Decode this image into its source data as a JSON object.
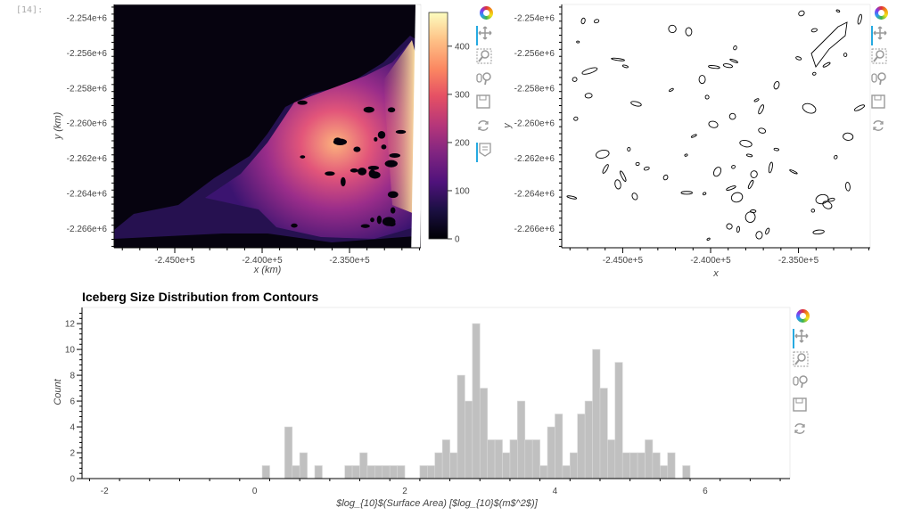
{
  "cell_prompt": "[14]:",
  "colors": {
    "bar_fill": "#c0c0c0",
    "bar_stroke": "#d8d8d8",
    "contour": "#000000",
    "toolbar_active": "#26aae1",
    "colormap": "magma"
  },
  "toolbar_icons": [
    "bokeh-logo",
    "pan-icon",
    "box-zoom-icon",
    "wheel-zoom-icon",
    "save-icon",
    "reset-icon",
    "hover-icon"
  ],
  "chart_data": [
    {
      "type": "heatmap",
      "xlabel": "x (km)",
      "ylabel": "y (km)",
      "xticks": [
        "-2.450e+5",
        "-2.400e+5",
        "-2.350e+5"
      ],
      "xtick_values": [
        -245000,
        -240000,
        -235000
      ],
      "yticks": [
        "-2.254e+6",
        "-2.256e+6",
        "-2.258e+6",
        "-2.260e+6",
        "-2.262e+6",
        "-2.264e+6",
        "-2.266e+6"
      ],
      "ytick_values": [
        -2254000,
        -2256000,
        -2258000,
        -2260000,
        -2262000,
        -2264000,
        -2266000
      ],
      "colorbar": {
        "ticks": [
          "0",
          "100",
          "200",
          "300",
          "400"
        ],
        "tick_values": [
          0,
          100,
          200,
          300,
          400
        ],
        "range": [
          0,
          470
        ],
        "colormap": "magma"
      }
    },
    {
      "type": "line",
      "xlabel": "x",
      "ylabel": "y",
      "xticks": [
        "-2.450e+5",
        "-2.400e+5",
        "-2.350e+5"
      ],
      "xtick_values": [
        -245000,
        -240000,
        -235000
      ],
      "yticks": [
        "-2.254e+6",
        "-2.256e+6",
        "-2.258e+6",
        "-2.260e+6",
        "-2.262e+6",
        "-2.264e+6",
        "-2.266e+6"
      ],
      "ytick_values": [
        -2254000,
        -2256000,
        -2258000,
        -2260000,
        -2262000,
        -2264000,
        -2266000
      ]
    },
    {
      "type": "bar",
      "title": "Iceberg Size Distribution from Contours",
      "xlabel": "$log_{10}$(Surface Area) [$log_{10}$(m$^2$)]",
      "ylabel": "Count",
      "bin_start": 0.1,
      "bin_width": 0.1,
      "values": [
        1,
        0,
        0,
        4,
        1,
        2,
        0,
        1,
        0,
        0,
        0,
        1,
        1,
        2,
        1,
        1,
        1,
        1,
        1,
        0,
        0,
        1,
        1,
        2,
        3,
        2,
        8,
        6,
        12,
        7,
        3,
        3,
        2,
        3,
        6,
        3,
        3,
        1,
        4,
        5,
        1,
        2,
        5,
        6,
        10,
        7,
        3,
        9,
        2,
        2,
        2,
        3,
        2,
        1,
        2,
        0,
        1
      ],
      "xlim": [
        -2.3,
        7.13
      ],
      "ylim": [
        0,
        13.25
      ],
      "xticks": [
        "-2",
        "0",
        "2",
        "4",
        "6"
      ],
      "xtick_values": [
        -2,
        0,
        2,
        4,
        6
      ],
      "yticks": [
        "0",
        "2",
        "4",
        "6",
        "8",
        "10",
        "12"
      ],
      "ytick_values": [
        0,
        2,
        4,
        6,
        8,
        10,
        12
      ]
    }
  ]
}
